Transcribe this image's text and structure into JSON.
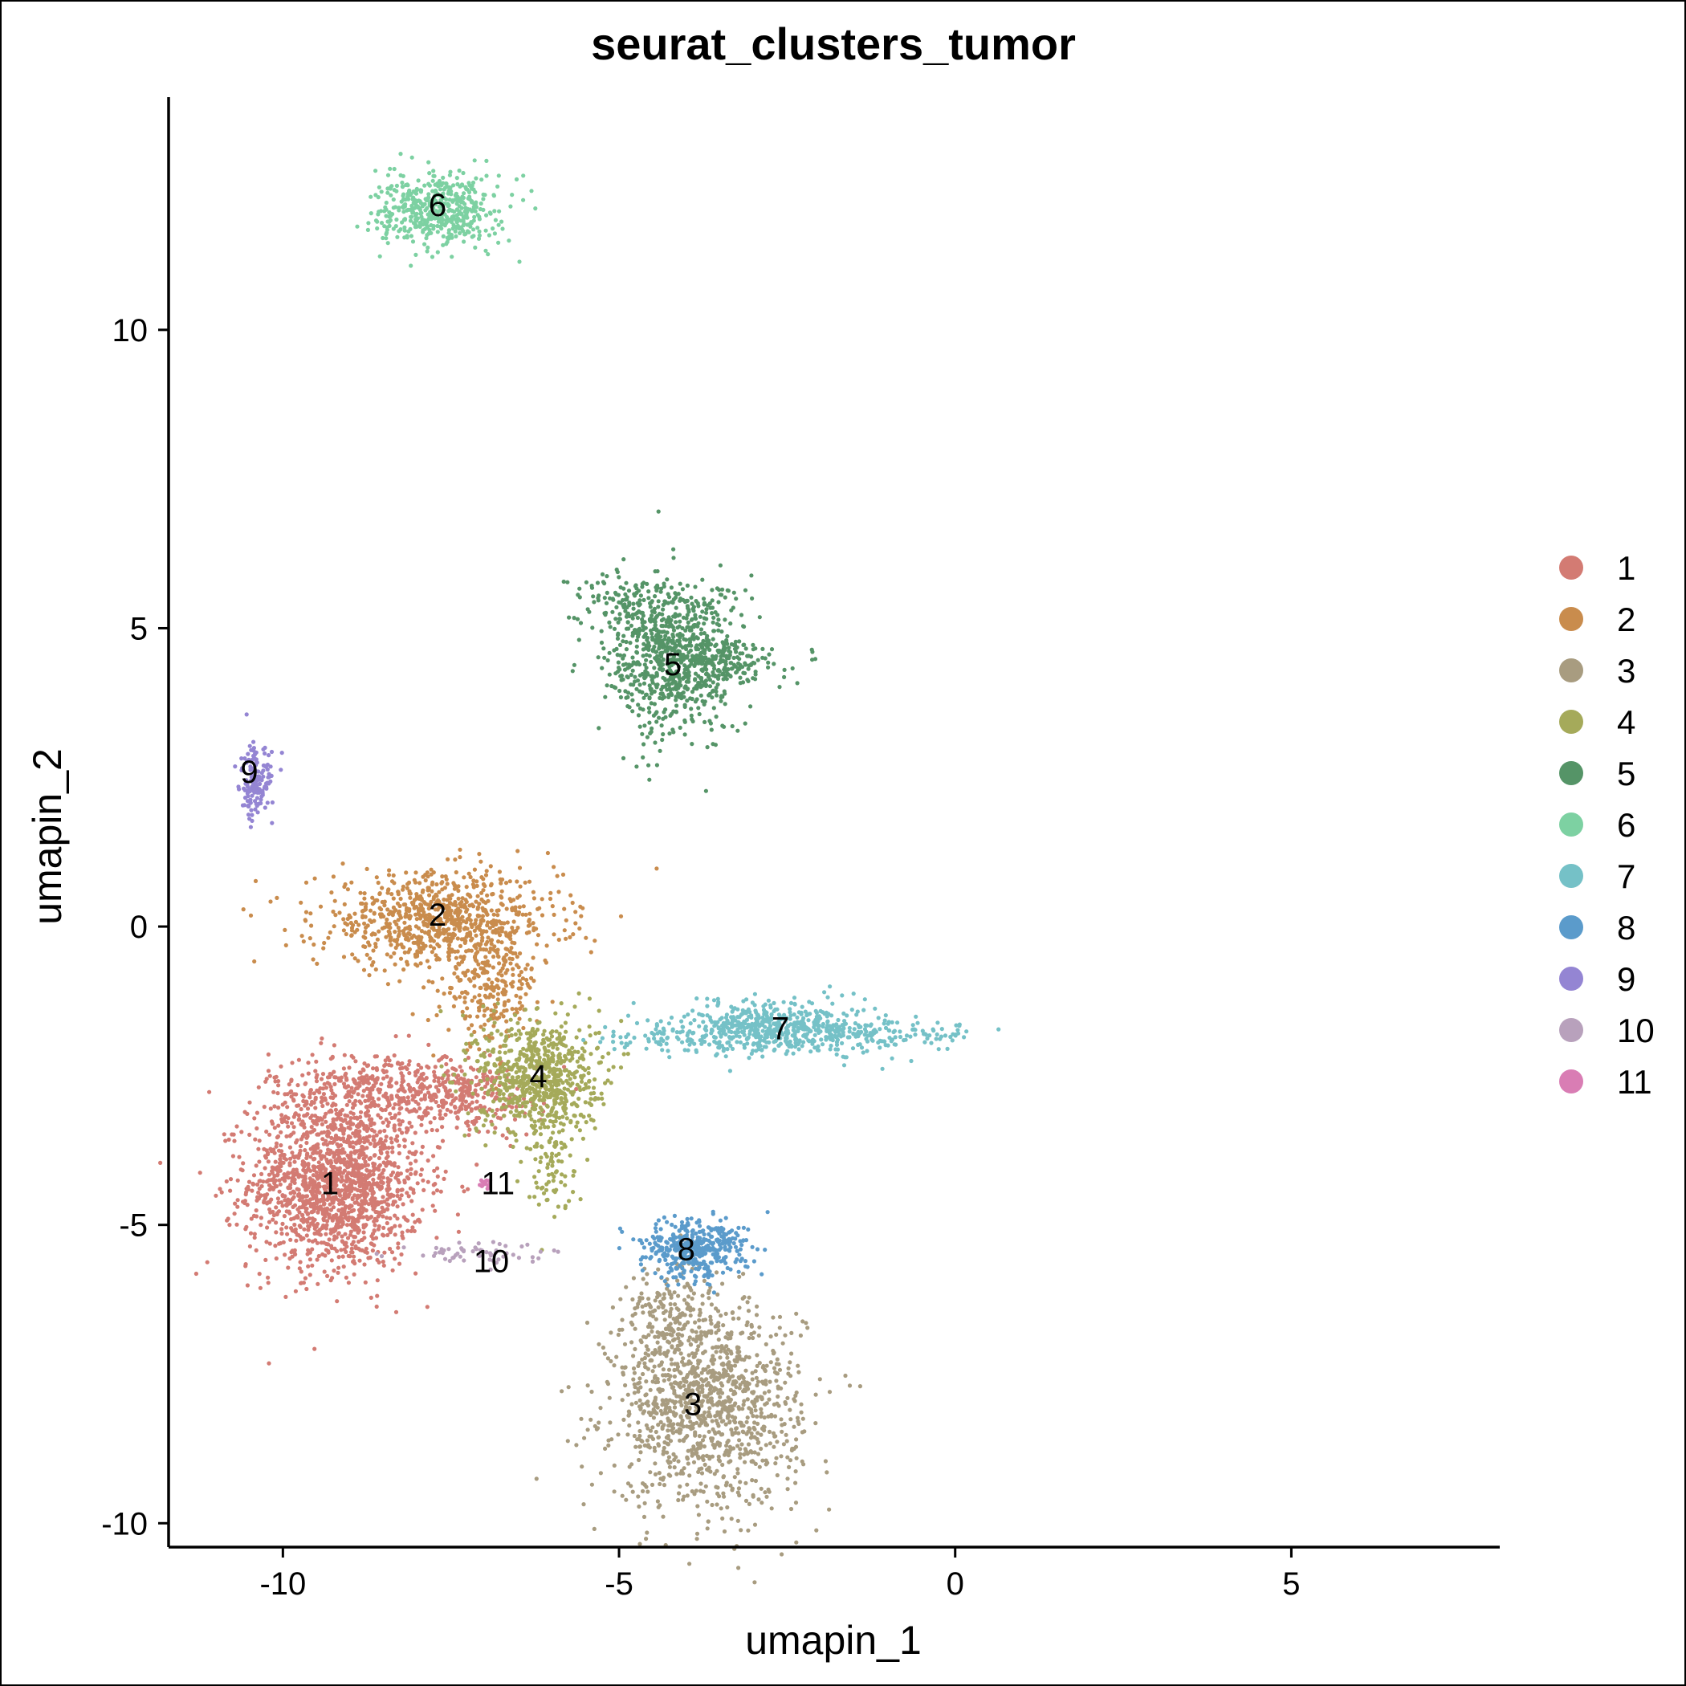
{
  "chart_data": {
    "type": "scatter",
    "title": "seurat_clusters_tumor",
    "xlabel": "umapin_1",
    "ylabel": "umapin_2",
    "xlim": [
      -11.7,
      8.1
    ],
    "ylim": [
      -10.4,
      13.9
    ],
    "x_ticks": [
      -10,
      -5,
      0,
      5
    ],
    "x_tick_labels": [
      "-10",
      "-5",
      "0",
      "5"
    ],
    "y_ticks": [
      -10,
      -5,
      0,
      5,
      10
    ],
    "y_tick_labels": [
      "-10",
      "-5",
      "0",
      "5",
      "10"
    ],
    "grid": false,
    "legend_position": "right",
    "clusters": [
      {
        "name": "1",
        "color": "#D37B73",
        "center": [
          -9.2,
          -4.3
        ],
        "spread": [
          0.65,
          0.72
        ],
        "n": 1600,
        "blobs": [
          {
            "center": [
              -8.4,
              -2.7
            ],
            "spread": [
              0.9,
              0.3
            ],
            "n": 450
          },
          {
            "center": [
              -7.3,
              -2.9
            ],
            "spread": [
              0.6,
              0.3
            ],
            "n": 160
          }
        ]
      },
      {
        "name": "2",
        "color": "#C98C4D",
        "center": [
          -7.7,
          0.1
        ],
        "spread": [
          0.9,
          0.4
        ],
        "n": 800,
        "blobs": [
          {
            "center": [
              -6.9,
              -1.0
            ],
            "spread": [
              0.35,
              0.5
            ],
            "n": 250
          }
        ]
      },
      {
        "name": "3",
        "color": "#A89C80",
        "center": [
          -3.7,
          -8.0
        ],
        "spread": [
          0.7,
          0.85
        ],
        "n": 1200,
        "blobs": [
          {
            "center": [
              -4.3,
              -6.5
            ],
            "spread": [
              0.3,
              0.4
            ],
            "n": 150
          }
        ]
      },
      {
        "name": "4",
        "color": "#A5AA5A",
        "center": [
          -6.2,
          -2.5
        ],
        "spread": [
          0.45,
          0.5
        ],
        "n": 700,
        "blobs": [
          {
            "center": [
              -6.0,
              -3.9
            ],
            "spread": [
              0.2,
              0.5
            ],
            "n": 90
          }
        ]
      },
      {
        "name": "5",
        "color": "#559467",
        "center": [
          -4.2,
          4.5
        ],
        "spread": [
          0.5,
          0.65
        ],
        "n": 800,
        "blobs": [
          {
            "center": [
              -3.4,
              4.5
            ],
            "spread": [
              0.4,
              0.2
            ],
            "n": 150
          },
          {
            "center": [
              -4.9,
              5.5
            ],
            "spread": [
              0.4,
              0.25
            ],
            "n": 90
          }
        ]
      },
      {
        "name": "6",
        "color": "#7DD1A2",
        "center": [
          -7.7,
          12.0
        ],
        "spread": [
          0.45,
          0.3
        ],
        "n": 500
      },
      {
        "name": "7",
        "color": "#75C1C7",
        "center": [
          -2.6,
          -1.7
        ],
        "spread": [
          0.8,
          0.22
        ],
        "n": 600,
        "blobs": [
          {
            "center": [
              -0.7,
              -1.8
            ],
            "spread": [
              0.55,
              0.1
            ],
            "n": 80
          },
          {
            "center": [
              -4.2,
              -1.9
            ],
            "spread": [
              0.6,
              0.1
            ],
            "n": 60
          }
        ]
      },
      {
        "name": "8",
        "color": "#5B9BCB",
        "center": [
          -3.9,
          -5.4
        ],
        "spread": [
          0.4,
          0.25
        ],
        "n": 400
      },
      {
        "name": "9",
        "color": "#9485D3",
        "center": [
          -10.4,
          2.4
        ],
        "spread": [
          0.12,
          0.3
        ],
        "n": 150
      },
      {
        "name": "10",
        "color": "#B8A1BC",
        "center": [
          -7.1,
          -5.5
        ],
        "spread": [
          0.55,
          0.1
        ],
        "n": 60
      },
      {
        "name": "11",
        "color": "#D97DB4",
        "center": [
          -7.0,
          -4.3
        ],
        "spread": [
          0.08,
          0.05
        ],
        "n": 15
      }
    ],
    "label_positions": {
      "1": [
        -9.3,
        -4.3
      ],
      "2": [
        -7.7,
        0.2
      ],
      "3": [
        -3.9,
        -8.0
      ],
      "4": [
        -6.2,
        -2.5
      ],
      "5": [
        -4.2,
        4.4
      ],
      "6": [
        -7.7,
        12.1
      ],
      "7": [
        -2.6,
        -1.7
      ],
      "8": [
        -4.0,
        -5.4
      ],
      "9": [
        -10.5,
        2.6
      ],
      "10": [
        -6.9,
        -5.6
      ],
      "11": [
        -6.8,
        -4.3
      ]
    }
  }
}
